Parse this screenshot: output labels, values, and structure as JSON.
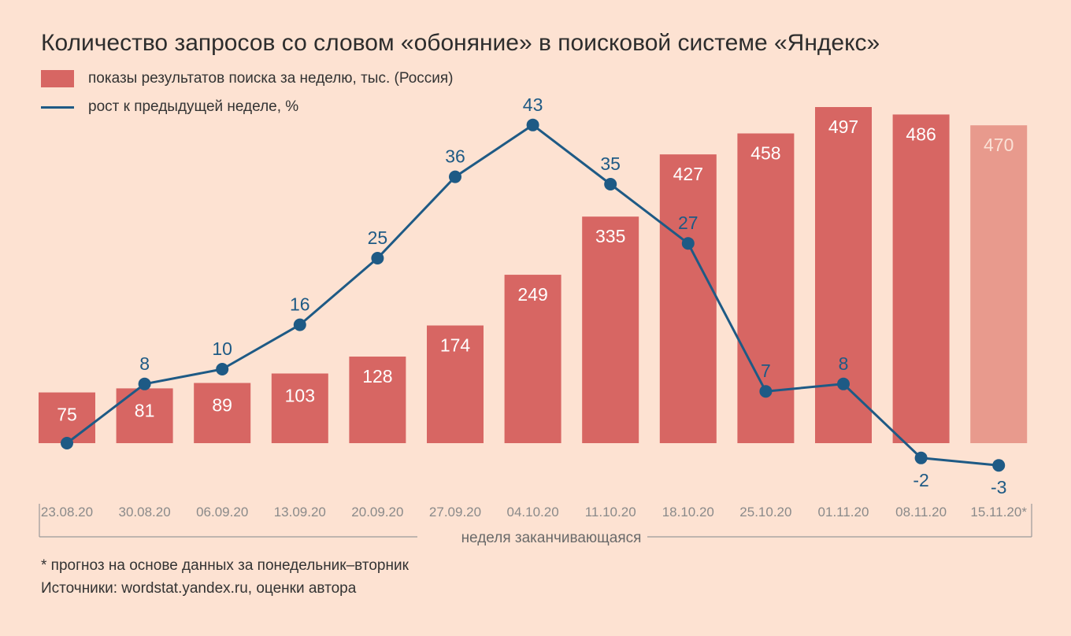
{
  "title": "Количество запросов со словом «обоняние» в поисковой системе «Яндекс»",
  "legend": {
    "bar_label": "показы результатов поиска за неделю, тыс. (Россия)",
    "line_label": "рост к предыдущей неделе, %"
  },
  "footnotes": {
    "forecast": "* прогноз на основе данных за понедельник–вторник",
    "sources": "Источники: wordstat.yandex.ru, оценки автора"
  },
  "colors": {
    "background": "#fde2d2",
    "bar": "#d76663",
    "bar_forecast": "#e89a8d",
    "line": "#1e5a85",
    "axis_text": "#8a8a8a"
  },
  "chart_data": {
    "type": "bar",
    "title": "Количество запросов со словом «обоняние» в поисковой системе «Яндекс»",
    "xlabel": "неделя заканчивающаяся",
    "categories": [
      "23.08.20",
      "30.08.20",
      "06.09.20",
      "13.09.20",
      "20.09.20",
      "27.09.20",
      "04.10.20",
      "11.10.20",
      "18.10.20",
      "25.10.20",
      "01.11.20",
      "08.11.20",
      "15.11.20*"
    ],
    "series": [
      {
        "name": "показы результатов поиска за неделю, тыс. (Россия)",
        "type": "bar",
        "values": [
          75,
          81,
          89,
          103,
          128,
          174,
          249,
          335,
          427,
          458,
          497,
          486,
          470
        ],
        "labels": [
          "75",
          "81",
          "89",
          "103",
          "128",
          "174",
          "249",
          "335",
          "427",
          "458",
          "497",
          "486",
          "470"
        ],
        "forecast_index": 12
      },
      {
        "name": "рост к предыдущей неделе, %",
        "type": "line",
        "values": [
          null,
          8,
          10,
          16,
          25,
          36,
          43,
          35,
          27,
          7,
          8,
          -2,
          -3
        ],
        "labels": [
          "",
          "8",
          "10",
          "16",
          "25",
          "36",
          "43",
          "35",
          "27",
          "7",
          "8",
          "-2",
          "-3"
        ]
      }
    ],
    "bar_ylim": [
      0,
      500
    ],
    "line_ylim": [
      -3,
      43
    ],
    "grid": false,
    "legend_position": "top-left"
  }
}
